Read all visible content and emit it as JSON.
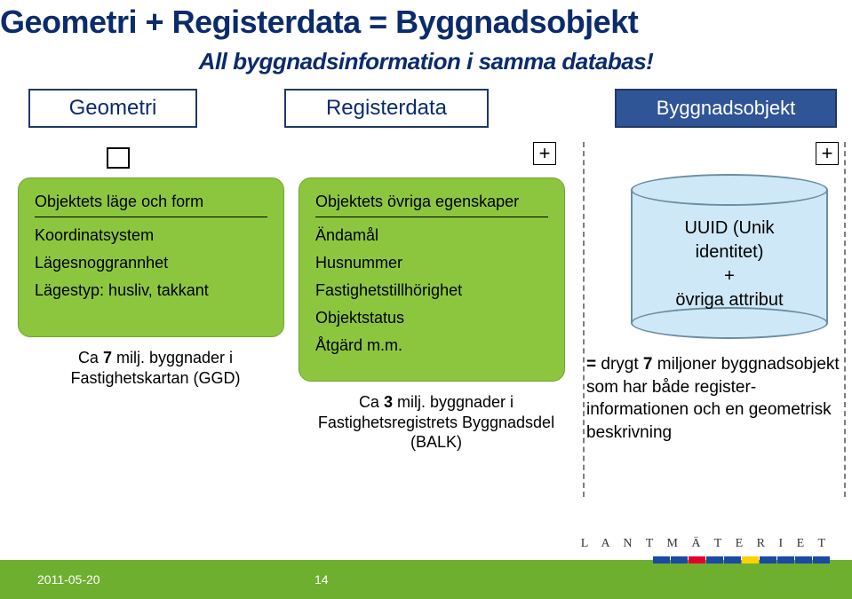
{
  "colors": {
    "title": "#0b2b6b",
    "topbox_border": "#1f3864",
    "bygr_fill": "#2f5597",
    "green": "#8cc63f",
    "green_border": "#6fa52e",
    "cyl_fill": "#cfe8f7",
    "cyl_stroke": "#6a8da3",
    "dash": "#7f7f7f",
    "footer_green": "#6faf2f",
    "white": "#ffffff"
  },
  "title": {
    "text": "Geometri + Registerdata = Byggnadsobjekt",
    "fontsize": 36,
    "color": "#0b2b6b"
  },
  "subtitle": {
    "text": "All byggnadsinformation i samma databas!",
    "fontsize": 26,
    "color": "#0b2b6b"
  },
  "topboxes": {
    "geom": {
      "label": "Geometri",
      "fontsize": 24,
      "color": "#0b2b6b",
      "fill": "#ffffff"
    },
    "reg": {
      "label": "Registerdata",
      "fontsize": 24,
      "color": "#0b2b6b",
      "fill": "#ffffff"
    },
    "bygr": {
      "label": "Byggnadsobjekt",
      "fontsize": 22,
      "color": "#ffffff",
      "fill": "#2f5597"
    }
  },
  "plus_glyph": "+",
  "greenbox_left": {
    "heading": "Objektets läge och form",
    "lines": [
      "Koordinatsystem",
      "Lägesnoggrannhet",
      "Lägestyp: husliv, takkant"
    ],
    "fill": "#8cc63f"
  },
  "greenbox_right": {
    "heading": "Objektets övriga egenskaper",
    "lines": [
      "Ändamål",
      "Husnummer",
      "Fastighetstillhörighet",
      "Objektstatus",
      "Åtgärd   m.m."
    ],
    "fill": "#8cc63f"
  },
  "caption_left": "Ca 7 milj. byggnader i Fastighetskartan (GGD)",
  "caption_right": "Ca 3 milj. byggnader i Fastighetsregistrets Byggnadsdel (BALK)",
  "cyl": {
    "fill": "#cfe8f7",
    "lines": [
      "UUID (Unik",
      "identitet)",
      "+",
      "övriga attribut"
    ]
  },
  "eq_text": {
    "bold_prefix": "= ",
    "bold_mid": "7",
    "full": "drygt 7 miljoner byggnadsobjekt som har både register­informationen och en geometrisk beskrivning"
  },
  "footer": {
    "date": "2011-05-20",
    "page": "14",
    "brand": "L A N T M Ä T E R I E T",
    "stripes": [
      "#1a4aa3",
      "#1a4aa3",
      "#e4002b",
      "#1a4aa3",
      "#1a4aa3",
      "#ffd100",
      "#1a4aa3",
      "#1a4aa3",
      "#1a4aa3",
      "#1a4aa3"
    ],
    "stripe_width": 20
  }
}
